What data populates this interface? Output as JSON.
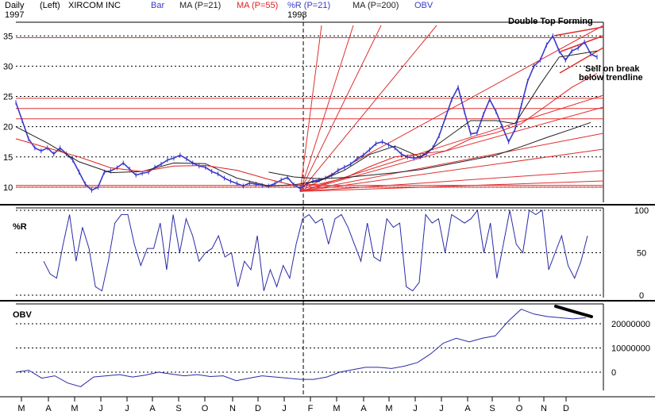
{
  "header": {
    "period": "Daily",
    "scale_side": "(Left)",
    "symbol": "XIRCOM INC",
    "bar_label": "Bar",
    "ma21_label": "MA (P=21)",
    "ma55_label": "MA (P=55)",
    "pr_label": "%R (P=21)",
    "ma200_label": "MA (P=200)",
    "obv_label": "OBV",
    "year_start": "1997",
    "year_mid": "1998"
  },
  "colors": {
    "price": "#3a3acc",
    "ma21": "#222222",
    "ma55": "#e02020",
    "ma200": "#222222",
    "oscillator": "#2a2aa8",
    "gridline": "#000000",
    "resistance": "#e03030",
    "fan": "#e03030",
    "trend": "#e03030",
    "marker": "#000000"
  },
  "annotations": {
    "double_top": "Double Top Forming",
    "sell_line1": "Sell on break",
    "sell_line2": "below trendline"
  },
  "panels": {
    "pr_title": "%R",
    "obv_title": "OBV"
  },
  "chart_data": {
    "type": "line",
    "title": "XIRCOM INC",
    "x_months": [
      "M",
      "A",
      "M",
      "J",
      "J",
      "A",
      "S",
      "O",
      "N",
      "D",
      "J",
      "F",
      "M",
      "A",
      "M",
      "J",
      "J",
      "A",
      "S",
      "O",
      "N",
      "D"
    ],
    "price": {
      "ylim": [
        7.5,
        37
      ],
      "yticks": [
        "10",
        "15",
        "20",
        "25",
        "30",
        "35"
      ],
      "grid_levels": [
        10,
        15,
        20,
        25,
        30,
        35
      ],
      "resistance_levels": [
        10,
        10.3,
        21.3,
        23,
        24.7,
        34.7
      ],
      "series": [
        {
          "name": "Bar",
          "values": [
            [
              0,
              24
            ],
            [
              2,
              21
            ],
            [
              4,
              18
            ],
            [
              6,
              16.5
            ],
            [
              8,
              16
            ],
            [
              10,
              16.5
            ],
            [
              12,
              15.5
            ],
            [
              14,
              16.5
            ],
            [
              16,
              15.5
            ],
            [
              18,
              14.5
            ],
            [
              20,
              12.5
            ],
            [
              22,
              10.5
            ],
            [
              24,
              9.5
            ],
            [
              26,
              10
            ],
            [
              28,
              12.5
            ],
            [
              30,
              12.7
            ],
            [
              32,
              13.2
            ],
            [
              34,
              14
            ],
            [
              36,
              13
            ],
            [
              38,
              12
            ],
            [
              40,
              12.3
            ],
            [
              42,
              12.5
            ],
            [
              44,
              13.3
            ],
            [
              46,
              13.8
            ],
            [
              48,
              14.5
            ],
            [
              50,
              14.8
            ],
            [
              52,
              15.3
            ],
            [
              54,
              14.7
            ],
            [
              56,
              14
            ],
            [
              58,
              13.5
            ],
            [
              60,
              13.3
            ],
            [
              62,
              12.6
            ],
            [
              64,
              12.2
            ],
            [
              66,
              11.5
            ],
            [
              68,
              11
            ],
            [
              70,
              10.6
            ],
            [
              72,
              10.2
            ],
            [
              74,
              10.7
            ],
            [
              76,
              10.5
            ],
            [
              78,
              10.3
            ],
            [
              80,
              10.2
            ],
            [
              82,
              10.6
            ],
            [
              84,
              11.2
            ],
            [
              86,
              11.6
            ],
            [
              88,
              10.4
            ],
            [
              90,
              9.8
            ],
            [
              92,
              10.5
            ],
            [
              94,
              11
            ],
            [
              96,
              11.2
            ],
            [
              98,
              11.5
            ],
            [
              100,
              12
            ],
            [
              102,
              12.8
            ],
            [
              104,
              13.3
            ],
            [
              106,
              13.8
            ],
            [
              108,
              14.7
            ],
            [
              110,
              15.3
            ],
            [
              112,
              16.2
            ],
            [
              114,
              17.2
            ],
            [
              116,
              17.5
            ],
            [
              118,
              17
            ],
            [
              120,
              16.5
            ],
            [
              122,
              15.5
            ],
            [
              124,
              15
            ],
            [
              126,
              14.8
            ],
            [
              128,
              15
            ],
            [
              130,
              15.5
            ],
            [
              132,
              16.5
            ],
            [
              134,
              18.5
            ],
            [
              136,
              21.5
            ],
            [
              138,
              24.5
            ],
            [
              140,
              26.5
            ],
            [
              142,
              22.5
            ],
            [
              144,
              18.8
            ],
            [
              146,
              19
            ],
            [
              148,
              22
            ],
            [
              150,
              24.5
            ],
            [
              152,
              22.5
            ],
            [
              154,
              20
            ],
            [
              156,
              17.5
            ],
            [
              158,
              19.5
            ],
            [
              160,
              23.5
            ],
            [
              162,
              27.5
            ],
            [
              164,
              30
            ],
            [
              166,
              31
            ],
            [
              168,
              33.5
            ],
            [
              170,
              35
            ],
            [
              172,
              32.5
            ],
            [
              174,
              31
            ],
            [
              176,
              32.5
            ],
            [
              178,
              33
            ],
            [
              180,
              34
            ],
            [
              182,
              32
            ],
            [
              184,
              31.5
            ]
          ]
        },
        {
          "name": "MA (P=21)",
          "values": [
            [
              0,
              20
            ],
            [
              10,
              17.3
            ],
            [
              20,
              14.2
            ],
            [
              30,
              12.4
            ],
            [
              40,
              12.6
            ],
            [
              50,
              14
            ],
            [
              60,
              13.9
            ],
            [
              70,
              11.5
            ],
            [
              80,
              10.2
            ],
            [
              88,
              10.4
            ],
            [
              96,
              11
            ],
            [
              104,
              12.8
            ],
            [
              112,
              15.4
            ],
            [
              120,
              16.8
            ],
            [
              128,
              15
            ],
            [
              136,
              18
            ],
            [
              144,
              21
            ],
            [
              152,
              21
            ],
            [
              158,
              20.5
            ],
            [
              166,
              27
            ],
            [
              172,
              31.5
            ],
            [
              178,
              32
            ],
            [
              184,
              32.5
            ]
          ]
        },
        {
          "name": "MA (P=55)",
          "values": [
            [
              0,
              18
            ],
            [
              10,
              16.5
            ],
            [
              20,
              15
            ],
            [
              30,
              13.2
            ],
            [
              40,
              12.6
            ],
            [
              50,
              13.5
            ],
            [
              60,
              13.6
            ],
            [
              70,
              12.8
            ],
            [
              80,
              11.3
            ],
            [
              88,
              10.3
            ],
            [
              96,
              10.5
            ],
            [
              104,
              11.5
            ],
            [
              112,
              13.4
            ],
            [
              120,
              15
            ],
            [
              128,
              15.5
            ],
            [
              136,
              16
            ],
            [
              144,
              18
            ],
            [
              152,
              19
            ],
            [
              160,
              20.5
            ],
            [
              168,
              23.5
            ],
            [
              176,
              26.5
            ],
            [
              184,
              28.8
            ]
          ]
        },
        {
          "name": "MA (P=200)",
          "values": [
            [
              80,
              12.5
            ],
            [
              88,
              11.7
            ],
            [
              96,
              11.4
            ],
            [
              104,
              11.6
            ],
            [
              112,
              12
            ],
            [
              120,
              12.4
            ],
            [
              128,
              12.9
            ],
            [
              136,
              13.7
            ],
            [
              144,
              14.5
            ],
            [
              152,
              15.3
            ],
            [
              160,
              16.7
            ],
            [
              168,
              18.2
            ],
            [
              176,
              19.6
            ],
            [
              182,
              20.7
            ]
          ]
        }
      ]
    },
    "percent_r": {
      "ylim": [
        0,
        100
      ],
      "yticks": [
        "100",
        "50",
        "0"
      ],
      "values": [
        40,
        25,
        20,
        60,
        95,
        40,
        80,
        55,
        10,
        5,
        40,
        85,
        95,
        95,
        60,
        35,
        55,
        55,
        85,
        30,
        95,
        50,
        90,
        70,
        40,
        50,
        55,
        70,
        45,
        50,
        10,
        40,
        30,
        70,
        5,
        30,
        10,
        35,
        20,
        60,
        90,
        95,
        85,
        90,
        60,
        90,
        95,
        80,
        60,
        40,
        85,
        45,
        40,
        90,
        80,
        85,
        10,
        5,
        15,
        95,
        85,
        90,
        50,
        95,
        90,
        85,
        90,
        100,
        50,
        85,
        20,
        60,
        100,
        60,
        50,
        100,
        95,
        100,
        30,
        50,
        70,
        35,
        20,
        40,
        70
      ]
    },
    "obv": {
      "yticks": [
        "20000000",
        "10000000",
        "0"
      ],
      "values": [
        0,
        800000,
        -2500000,
        -1500000,
        -4500000,
        -6000000,
        -2000000,
        -1500000,
        -1000000,
        -2000000,
        -1200000,
        0,
        -800000,
        -1500000,
        -1000000,
        -1800000,
        -1500000,
        -3500000,
        -2500000,
        -1500000,
        -2000000,
        -2500000,
        -3000000,
        -3000000,
        -2000000,
        0,
        1000000,
        2000000,
        2000000,
        1500000,
        2500000,
        4000000,
        7500000,
        12000000,
        14000000,
        12500000,
        14000000,
        15000000,
        21000000,
        26000000,
        24000000,
        23000000,
        22500000,
        22000000,
        22500000
      ]
    }
  }
}
